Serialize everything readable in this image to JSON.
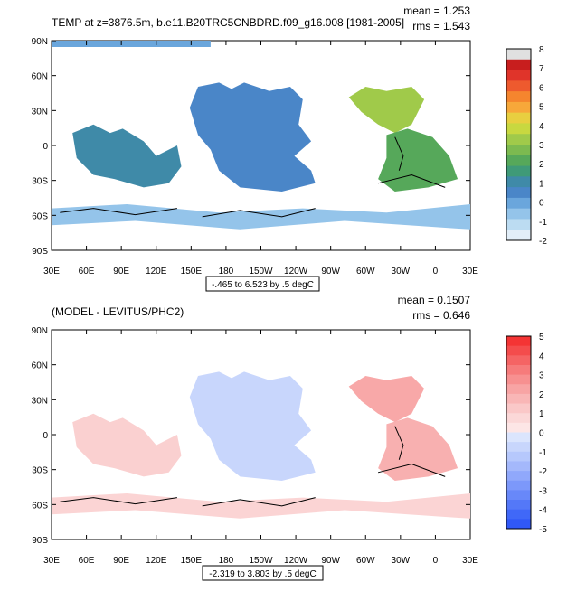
{
  "chart_data": [
    {
      "type": "heatmap",
      "title": "TEMP at z=3876.5m, b.e11.B20TRC5CNBDRD.f09_g16.008 [1981-2005]",
      "mean_label": "mean = 1.253",
      "rms_label": "rms = 1.543",
      "range_label": "-.465 to 6.523 by .5 degC",
      "x_ticks": [
        "30E",
        "60E",
        "90E",
        "120E",
        "150E",
        "180",
        "150W",
        "120W",
        "90W",
        "60W",
        "30W",
        "0",
        "30E"
      ],
      "y_ticks": [
        "90N",
        "60N",
        "30N",
        "0",
        "30S",
        "60S",
        "90S"
      ],
      "colorbar": {
        "labels": [
          "8",
          "7",
          "6",
          "5",
          "4",
          "3",
          "2",
          "1",
          "0",
          "-1",
          "-2"
        ],
        "colors": [
          "#e0e0e0",
          "#c81e1e",
          "#e0342a",
          "#ee5a2e",
          "#f5852e",
          "#f7a83a",
          "#e8cf40",
          "#c8d840",
          "#a0ca4a",
          "#7cba50",
          "#56a85a",
          "#3f9a78",
          "#3f8aa8",
          "#4a86c8",
          "#6aa6dc",
          "#94c4ea",
          "#bcdcf2",
          "#e2eef8"
        ]
      },
      "regions": [
        {
          "name": "arctic-strip",
          "color": "#6aa6dc"
        },
        {
          "name": "pacific-north",
          "color": "#4a86c8"
        },
        {
          "name": "indian-ocean",
          "color": "#3f8aa8"
        },
        {
          "name": "north-atlantic",
          "color": "#a0ca4a"
        },
        {
          "name": "south-atlantic",
          "color": "#56a85a"
        },
        {
          "name": "southern-ocean",
          "color": "#94c4ea"
        }
      ]
    },
    {
      "type": "heatmap",
      "title": "(MODEL - LEVITUS/PHC2)",
      "mean_label": "mean = 0.1507",
      "rms_label": "rms = 0.646",
      "range_label": "-2.319 to 3.803 by .5 degC",
      "x_ticks": [
        "30E",
        "60E",
        "90E",
        "120E",
        "150E",
        "180",
        "150W",
        "120W",
        "90W",
        "60W",
        "30W",
        "0",
        "30E"
      ],
      "y_ticks": [
        "90N",
        "60N",
        "30N",
        "0",
        "30S",
        "60S",
        "90S"
      ],
      "colorbar": {
        "labels": [
          "5",
          "4",
          "3",
          "2",
          "1",
          "0",
          "-1",
          "-2",
          "-3",
          "-4",
          "-5"
        ],
        "colors": [
          "#f43434",
          "#f44c4c",
          "#f56464",
          "#f67b7b",
          "#f79090",
          "#f8a4a4",
          "#f9b6b6",
          "#fac8c8",
          "#fbd8d8",
          "#fde6e6",
          "#dbe5fd",
          "#c8d6fc",
          "#b6c8fc",
          "#a4b8fb",
          "#90a8fb",
          "#7c98fa",
          "#6888f9",
          "#5478f8",
          "#4068f8",
          "#3058f7"
        ]
      },
      "regions": [
        {
          "name": "pacific-north",
          "color": "#c8d6fc"
        },
        {
          "name": "indian-ocean",
          "color": "#fad0d0"
        },
        {
          "name": "north-atlantic",
          "color": "#f8a8a8"
        },
        {
          "name": "south-atlantic",
          "color": "#f8b0b0"
        },
        {
          "name": "southern-ocean",
          "color": "#fbd4d4"
        }
      ]
    }
  ]
}
